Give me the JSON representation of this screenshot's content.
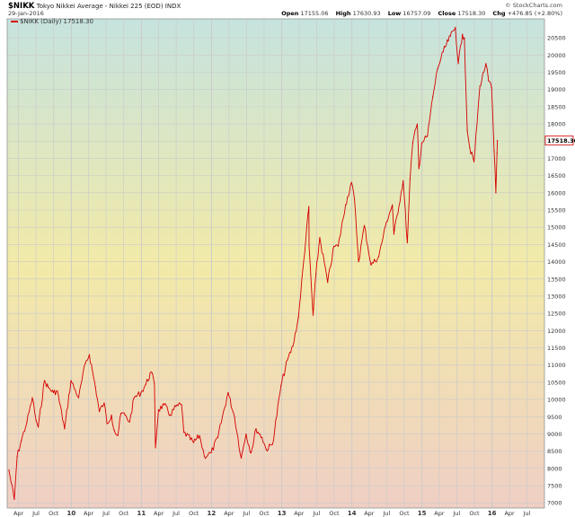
{
  "header": {
    "symbol": "$NIKK",
    "name": "Tokyo Nikkei Average - Nikkei 225 (EOD) INDX",
    "date": "29-Jan-2016",
    "brand": "© StockCharts.com",
    "open_label": "Open",
    "open": "17155.06",
    "high_label": "High",
    "high": "17630.93",
    "low_label": "Low",
    "low": "16757.09",
    "close_label": "Close",
    "close": "17518.30",
    "chg_label": "Chg",
    "chg": "+476.85 (+2.80%)"
  },
  "legend": {
    "text": "$NIKK (Daily) 17518.30"
  },
  "colors": {
    "line": "#d40000",
    "grid": "#c9c9c9",
    "bg_top": "#c6e3de",
    "bg_mid": "#f2eaa8",
    "bg_bottom": "#efcfc4",
    "price_tag_border": "#d40000"
  },
  "chart_data": {
    "type": "line",
    "title": "$NIKK Tokyo Nikkei Average - Nikkei 225 (EOD) INDX",
    "xlabel": "",
    "ylabel": "",
    "grid": true,
    "ylim": [
      6850,
      21050
    ],
    "x_range": [
      "2009-02-01",
      "2016-09-30"
    ],
    "y_ticks": [
      7000,
      7500,
      8000,
      8500,
      9000,
      9500,
      10000,
      10500,
      11000,
      11500,
      12000,
      12500,
      13000,
      13500,
      14000,
      14500,
      15000,
      15500,
      16000,
      16500,
      17000,
      17500,
      18000,
      18500,
      19000,
      19500,
      20000,
      20500
    ],
    "y_tick_labels": [
      "7000",
      "7500",
      "8000",
      "8500",
      "9000",
      "9500",
      "10000",
      "10500",
      "11000",
      "11500",
      "12000",
      "12500",
      "13000",
      "13500",
      "14000",
      "14500",
      "15000",
      "15500",
      "16000",
      "16500",
      "17000",
      "17500",
      "18000",
      "18500",
      "19000",
      "19500",
      "20000",
      "20500"
    ],
    "x_ticks": [
      {
        "date": "2009-04-01",
        "label": "Apr",
        "year": false
      },
      {
        "date": "2009-07-01",
        "label": "Jul",
        "year": false
      },
      {
        "date": "2009-10-01",
        "label": "Oct",
        "year": false
      },
      {
        "date": "2010-01-01",
        "label": "10",
        "year": true
      },
      {
        "date": "2010-04-01",
        "label": "Apr",
        "year": false
      },
      {
        "date": "2010-07-01",
        "label": "Jul",
        "year": false
      },
      {
        "date": "2010-10-01",
        "label": "Oct",
        "year": false
      },
      {
        "date": "2011-01-01",
        "label": "11",
        "year": true
      },
      {
        "date": "2011-04-01",
        "label": "Apr",
        "year": false
      },
      {
        "date": "2011-07-01",
        "label": "Jul",
        "year": false
      },
      {
        "date": "2011-10-01",
        "label": "Oct",
        "year": false
      },
      {
        "date": "2012-01-01",
        "label": "12",
        "year": true
      },
      {
        "date": "2012-04-01",
        "label": "Apr",
        "year": false
      },
      {
        "date": "2012-07-01",
        "label": "Jul",
        "year": false
      },
      {
        "date": "2012-10-01",
        "label": "Oct",
        "year": false
      },
      {
        "date": "2013-01-01",
        "label": "13",
        "year": true
      },
      {
        "date": "2013-04-01",
        "label": "Apr",
        "year": false
      },
      {
        "date": "2013-07-01",
        "label": "Jul",
        "year": false
      },
      {
        "date": "2013-10-01",
        "label": "Oct",
        "year": false
      },
      {
        "date": "2014-01-01",
        "label": "14",
        "year": true
      },
      {
        "date": "2014-04-01",
        "label": "Apr",
        "year": false
      },
      {
        "date": "2014-07-01",
        "label": "Jul",
        "year": false
      },
      {
        "date": "2014-10-01",
        "label": "Oct",
        "year": false
      },
      {
        "date": "2015-01-01",
        "label": "15",
        "year": true
      },
      {
        "date": "2015-04-01",
        "label": "Apr",
        "year": false
      },
      {
        "date": "2015-07-01",
        "label": "Jul",
        "year": false
      },
      {
        "date": "2015-10-01",
        "label": "Oct",
        "year": false
      },
      {
        "date": "2016-01-01",
        "label": "16",
        "year": true
      },
      {
        "date": "2016-04-01",
        "label": "Apr",
        "year": false
      },
      {
        "date": "2016-07-01",
        "label": "Jul",
        "year": false
      }
    ],
    "last_value_tag": "17518.30",
    "series": [
      {
        "x": [
          "2009-02-10",
          "2009-03-10",
          "2009-03-25",
          "2009-04-15",
          "2009-05-15",
          "2009-06-12",
          "2009-07-01",
          "2009-07-13",
          "2009-08-14",
          "2009-09-03",
          "2009-09-30",
          "2009-10-20",
          "2009-11-27",
          "2009-12-30",
          "2010-02-08",
          "2010-03-15",
          "2010-04-05",
          "2010-05-07",
          "2010-05-27",
          "2010-06-21",
          "2010-07-06",
          "2010-07-29",
          "2010-08-13",
          "2010-08-31",
          "2010-09-17",
          "2010-10-08",
          "2010-11-01",
          "2010-11-24",
          "2010-12-30",
          "2011-01-25",
          "2011-02-21",
          "2011-03-10",
          "2011-03-15",
          "2011-03-31",
          "2011-04-29",
          "2011-05-31",
          "2011-06-30",
          "2011-07-29",
          "2011-08-10",
          "2011-09-30",
          "2011-10-31",
          "2011-11-25",
          "2011-12-30",
          "2012-02-03",
          "2012-03-27",
          "2012-04-30",
          "2012-06-04",
          "2012-06-29",
          "2012-07-25",
          "2012-08-20",
          "2012-09-20",
          "2012-10-12",
          "2012-11-14",
          "2012-12-28",
          "2013-01-31",
          "2013-02-28",
          "2013-03-29",
          "2013-05-22",
          "2013-05-23",
          "2013-06-13",
          "2013-06-28",
          "2013-07-18",
          "2013-08-28",
          "2013-09-30",
          "2013-10-22",
          "2013-11-29",
          "2013-12-30",
          "2014-01-15",
          "2014-02-05",
          "2014-03-07",
          "2014-04-11",
          "2014-05-21",
          "2014-06-30",
          "2014-07-31",
          "2014-08-08",
          "2014-09-25",
          "2014-10-17",
          "2014-10-31",
          "2014-11-14",
          "2014-12-08",
          "2014-12-16",
          "2014-12-31",
          "2015-01-30",
          "2015-02-27",
          "2015-03-23",
          "2015-04-22",
          "2015-05-29",
          "2015-06-24",
          "2015-07-09",
          "2015-07-31",
          "2015-08-10",
          "2015-08-25",
          "2015-09-07",
          "2015-09-29",
          "2015-10-30",
          "2015-11-30",
          "2015-12-14",
          "2015-12-30",
          "2016-01-12",
          "2016-01-21",
          "2016-01-27",
          "2016-01-29"
        ],
        "values": [
          7950,
          7100,
          8350,
          8800,
          9350,
          10050,
          9400,
          9200,
          10550,
          10350,
          10200,
          10250,
          9150,
          10550,
          10050,
          11050,
          11300,
          10350,
          9650,
          9900,
          9300,
          9550,
          9100,
          8950,
          9600,
          9550,
          9350,
          10050,
          10200,
          10450,
          10800,
          10450,
          8600,
          9700,
          9850,
          9550,
          9800,
          9850,
          9050,
          8750,
          8950,
          8350,
          8450,
          8900,
          10200,
          9500,
          8300,
          9000,
          8450,
          9150,
          8900,
          8550,
          8700,
          10400,
          11150,
          11550,
          12400,
          15600,
          14450,
          12450,
          13650,
          14700,
          13400,
          14450,
          14450,
          15650,
          16300,
          15800,
          14000,
          15050,
          13900,
          14150,
          15150,
          15650,
          14800,
          16350,
          14550,
          16400,
          17450,
          18000,
          16700,
          17450,
          17650,
          18800,
          19600,
          20100,
          20550,
          20800,
          19750,
          20600,
          20500,
          17800,
          17300,
          16900,
          19100,
          19750,
          19250,
          19050,
          17200,
          16000,
          17150,
          17520
        ]
      }
    ]
  }
}
